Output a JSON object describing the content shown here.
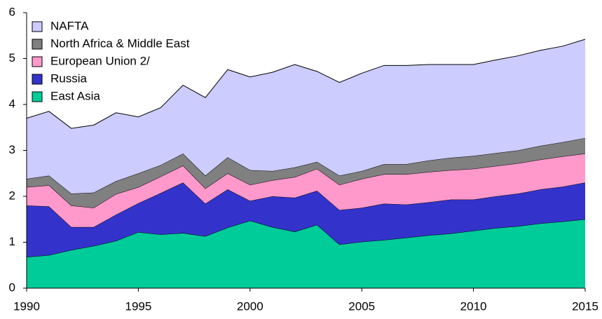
{
  "chart_data": {
    "type": "stacked_area",
    "x": [
      1990,
      1991,
      1992,
      1993,
      1994,
      1995,
      1996,
      1997,
      1998,
      1999,
      2000,
      2001,
      2002,
      2003,
      2004,
      2005,
      2006,
      2007,
      2008,
      2009,
      2010,
      2011,
      2012,
      2013,
      2014,
      2015
    ],
    "series": [
      {
        "name": "East Asia",
        "color": "#00cc99",
        "values": [
          0.68,
          0.72,
          0.83,
          0.92,
          1.03,
          1.22,
          1.17,
          1.2,
          1.13,
          1.32,
          1.47,
          1.33,
          1.23,
          1.38,
          0.95,
          1.01,
          1.05,
          1.1,
          1.15,
          1.19,
          1.25,
          1.31,
          1.35,
          1.41,
          1.45,
          1.5
        ]
      },
      {
        "name": "Russia",
        "color": "#3333cc",
        "values": [
          1.12,
          1.06,
          0.5,
          0.41,
          0.57,
          0.63,
          0.9,
          1.1,
          0.71,
          0.83,
          0.43,
          0.67,
          0.74,
          0.74,
          0.75,
          0.74,
          0.79,
          0.72,
          0.72,
          0.74,
          0.68,
          0.69,
          0.71,
          0.74,
          0.76,
          0.8
        ]
      },
      {
        "name": "European Union 2/",
        "color": "#ff99cc",
        "values": [
          0.4,
          0.46,
          0.47,
          0.42,
          0.45,
          0.35,
          0.36,
          0.37,
          0.33,
          0.35,
          0.35,
          0.35,
          0.45,
          0.48,
          0.55,
          0.63,
          0.64,
          0.66,
          0.66,
          0.64,
          0.67,
          0.66,
          0.66,
          0.65,
          0.66,
          0.63
        ]
      },
      {
        "name": "North Africa & Middle East",
        "color": "#808080",
        "values": [
          0.18,
          0.21,
          0.26,
          0.33,
          0.28,
          0.3,
          0.25,
          0.26,
          0.28,
          0.35,
          0.32,
          0.2,
          0.21,
          0.15,
          0.2,
          0.17,
          0.22,
          0.22,
          0.25,
          0.27,
          0.28,
          0.28,
          0.28,
          0.3,
          0.31,
          0.34
        ]
      },
      {
        "name": "NAFTA",
        "color": "#ccccff",
        "values": [
          1.32,
          1.4,
          1.42,
          1.47,
          1.49,
          1.23,
          1.25,
          1.49,
          1.7,
          1.91,
          2.03,
          2.15,
          2.24,
          1.97,
          2.03,
          2.13,
          2.15,
          2.15,
          2.09,
          2.03,
          1.99,
          2.03,
          2.06,
          2.08,
          2.09,
          2.15
        ]
      }
    ],
    "xlim": [
      1990,
      2015
    ],
    "xticks": [
      1990,
      1995,
      2000,
      2005,
      2010,
      2015
    ],
    "ylim": [
      0,
      6
    ],
    "yticks": [
      0,
      1,
      2,
      3,
      4,
      5,
      6
    ],
    "legend": "upper-left"
  }
}
